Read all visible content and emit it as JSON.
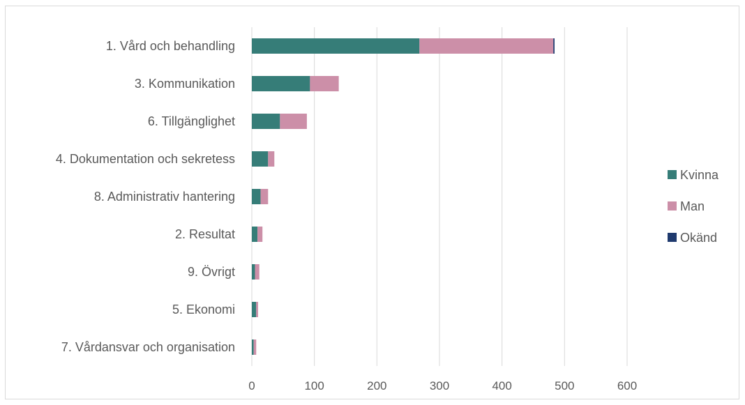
{
  "chart_data": {
    "type": "bar",
    "orientation": "horizontal",
    "stacked": true,
    "categories": [
      "1. Vård och behandling",
      "3. Kommunikation",
      "6. Tillgänglighet",
      "4. Dokumentation och sekretess",
      "8. Administrativ hantering",
      "2. Resultat",
      "9. Övrigt",
      "5. Ekonomi",
      "7. Vårdansvar och organisation"
    ],
    "series": [
      {
        "name": "Kvinna",
        "color": "#367d78",
        "values": [
          268,
          93,
          45,
          26,
          14,
          9,
          5,
          7,
          3
        ]
      },
      {
        "name": "Man",
        "color": "#cc8fa8",
        "values": [
          214,
          46,
          43,
          10,
          12,
          8,
          7,
          3,
          4
        ]
      },
      {
        "name": "Okänd",
        "color": "#1f3a6e",
        "values": [
          2,
          0,
          0,
          0,
          0,
          0,
          0,
          0,
          0
        ]
      }
    ],
    "xlim": [
      0,
      600
    ],
    "xticks": [
      0,
      100,
      200,
      300,
      400,
      500,
      600
    ],
    "grid": "vertical",
    "legend": "right"
  }
}
